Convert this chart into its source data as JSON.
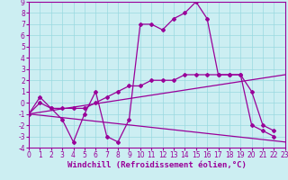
{
  "xlabel": "Windchill (Refroidissement éolien,°C)",
  "xlim": [
    0,
    23
  ],
  "ylim": [
    -4,
    9
  ],
  "xticks": [
    0,
    1,
    2,
    3,
    4,
    5,
    6,
    7,
    8,
    9,
    10,
    11,
    12,
    13,
    14,
    15,
    16,
    17,
    18,
    19,
    20,
    21,
    22,
    23
  ],
  "yticks": [
    -4,
    -3,
    -2,
    -1,
    0,
    1,
    2,
    3,
    4,
    5,
    6,
    7,
    8,
    9
  ],
  "bg_color": "#cceef2",
  "grid_color": "#99d9e0",
  "line_color": "#990099",
  "spiky_x": [
    0,
    1,
    2,
    3,
    4,
    5,
    6,
    7,
    8,
    9,
    10,
    11,
    12,
    13,
    14,
    15,
    16,
    17,
    18,
    19,
    20,
    21,
    22
  ],
  "spiky_y": [
    -1,
    0.5,
    -0.5,
    -1.5,
    -3.5,
    -1,
    1,
    -3,
    -3.5,
    -1.5,
    7,
    7,
    6.5,
    7.5,
    8,
    9,
    7.5,
    2.5,
    2.5,
    2.5,
    -2,
    -2.5,
    -3
  ],
  "smooth_x": [
    0,
    1,
    2,
    3,
    4,
    5,
    6,
    7,
    8,
    9,
    10,
    11,
    12,
    13,
    14,
    15,
    16,
    17,
    18,
    19,
    20,
    21,
    22
  ],
  "smooth_y": [
    -1,
    0,
    -0.5,
    -0.5,
    -0.5,
    -0.5,
    0,
    0.5,
    1,
    1.5,
    1.5,
    2,
    2,
    2,
    2.5,
    2.5,
    2.5,
    2.5,
    2.5,
    2.5,
    1,
    -2,
    -2.5
  ],
  "upper_line_x": [
    0,
    23
  ],
  "upper_line_y": [
    -1,
    2.5
  ],
  "lower_line_x": [
    0,
    23
  ],
  "lower_line_y": [
    -1,
    -3.5
  ],
  "tick_fontsize": 5.5,
  "xlabel_fontsize": 6.5,
  "marker": "D",
  "markersize": 2,
  "lw": 0.9
}
